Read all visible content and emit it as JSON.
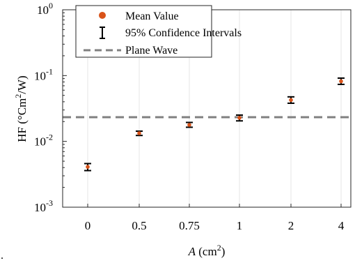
{
  "chart_data": {
    "type": "scatter",
    "title": "",
    "xlabel": {
      "prefix": "",
      "italic": "A",
      "unit_open": " (cm",
      "unit_exp": "2",
      "unit_close": ")"
    },
    "ylabel": {
      "prefix": "HF (°Cm",
      "exp": "2",
      "suffix": "/W)"
    },
    "categories": [
      "0",
      "0.5",
      "0.75",
      "1",
      "2",
      "4"
    ],
    "yscale": "log",
    "ylim": [
      0.001,
      1
    ],
    "y_ticks": [
      {
        "base": "10",
        "exp": "-3",
        "value": 0.001
      },
      {
        "base": "10",
        "exp": "-2",
        "value": 0.01
      },
      {
        "base": "10",
        "exp": "-1",
        "value": 0.1
      },
      {
        "base": "10",
        "exp": "0",
        "value": 1
      }
    ],
    "grid": {
      "vertical": true,
      "horizontal": false
    },
    "series": [
      {
        "name": "Mean Value",
        "kind": "points",
        "values": [
          0.0041,
          0.0133,
          0.0178,
          0.0228,
          0.0425,
          0.082
        ]
      },
      {
        "name": "95% Confidence Intervals",
        "kind": "errorbars",
        "lower": [
          0.0036,
          0.0123,
          0.0164,
          0.0205,
          0.038,
          0.0735
        ],
        "upper": [
          0.0046,
          0.0143,
          0.0194,
          0.0251,
          0.0475,
          0.0915
        ]
      },
      {
        "name": "Plane Wave",
        "kind": "hline",
        "value": 0.0233
      }
    ],
    "legend": {
      "placement": "top-left"
    },
    "colors": {
      "points": "#d95319",
      "errorbars": "#000000",
      "hline": "#808080",
      "grid": "#e6e6e6",
      "axes": "#262626"
    }
  },
  "stray_mark": "."
}
